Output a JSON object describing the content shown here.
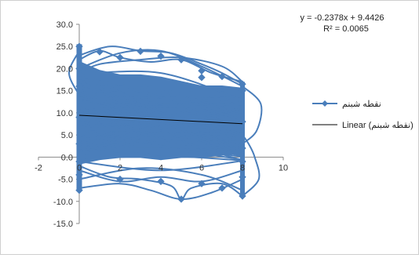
{
  "chart_data": {
    "type": "scatter",
    "title": "",
    "xlabel": "",
    "ylabel": "",
    "xlim": [
      -2,
      10
    ],
    "ylim": [
      -15,
      30
    ],
    "x_ticks": [
      "-2",
      "0",
      "2",
      "4",
      "6",
      "8",
      "10"
    ],
    "y_ticks": [
      "30.0",
      "25.0",
      "20.0",
      "15.0",
      "10.0",
      "5.0",
      "0.0",
      "-5.0",
      "-10.0",
      "-15.0"
    ],
    "grid": false,
    "legend_position": "right",
    "series": [
      {
        "name": "نقطه شبنم",
        "color": "#4a7ebb",
        "marker": "diamond",
        "style": "smoothed-line-with-markers",
        "range_x": [
          0,
          8
        ],
        "range_y": [
          -9.5,
          25.5
        ],
        "points": [
          [
            0,
            25.0
          ],
          [
            1,
            23.8
          ],
          [
            2,
            22.5
          ],
          [
            3,
            23.9
          ],
          [
            4,
            22.8
          ],
          [
            5,
            22.0
          ],
          [
            6,
            19.5
          ],
          [
            7,
            18.2
          ],
          [
            8,
            16.5
          ],
          [
            0,
            20.0
          ],
          [
            8,
            15.0
          ],
          [
            6,
            18.0
          ],
          [
            0,
            16.0
          ],
          [
            0,
            9.0
          ],
          [
            8,
            8.0
          ],
          [
            0,
            3.0
          ],
          [
            8,
            2.0
          ],
          [
            0,
            -1.0
          ],
          [
            8,
            -1.0
          ],
          [
            0,
            -7.5
          ],
          [
            2,
            -5.0
          ],
          [
            4,
            -5.5
          ],
          [
            5,
            -9.5
          ],
          [
            6,
            -6.0
          ],
          [
            7,
            -7.0
          ],
          [
            8,
            -8.8
          ],
          [
            0,
            -4.0
          ],
          [
            8,
            -4.5
          ]
        ]
      },
      {
        "name": "Linear (نقطه شبنم)",
        "color": "#000000",
        "type": "line",
        "x": [
          0,
          8
        ],
        "y": [
          9.4426,
          7.5402
        ]
      }
    ],
    "legend": [
      {
        "label": "نقطه شبنم",
        "kind": "marker-line",
        "color": "#4a7ebb"
      },
      {
        "label": "Linear (نقطه شبنم)",
        "kind": "line",
        "color": "#000000"
      }
    ],
    "annotations": {
      "equation": "y = -0.2378x + 9.4426",
      "r_squared": "R² = 0.0065"
    }
  }
}
